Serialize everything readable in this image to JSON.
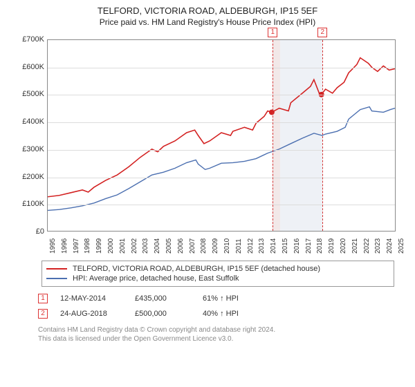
{
  "title_line1": "TELFORD, VICTORIA ROAD, ALDEBURGH, IP15 5EF",
  "title_line2": "Price paid vs. HM Land Registry's House Price Index (HPI)",
  "chart": {
    "type": "line",
    "background_color": "#ffffff",
    "grid_color": "#dcdcdc",
    "axis_color": "#888888",
    "x_years": [
      "1995",
      "1996",
      "1997",
      "1998",
      "1999",
      "2000",
      "2001",
      "2002",
      "2003",
      "2004",
      "2005",
      "2006",
      "2007",
      "2008",
      "2009",
      "2010",
      "2011",
      "2012",
      "2013",
      "2014",
      "2015",
      "2016",
      "2017",
      "2018",
      "2019",
      "2020",
      "2021",
      "2022",
      "2023",
      "2024",
      "2025"
    ],
    "xlim": [
      1995,
      2025
    ],
    "ylim": [
      0,
      700000
    ],
    "y_ticks": [
      0,
      100000,
      200000,
      300000,
      400000,
      500000,
      600000,
      700000
    ],
    "y_tick_labels": [
      "£0",
      "£100K",
      "£200K",
      "£300K",
      "£400K",
      "£500K",
      "£600K",
      "£700K"
    ],
    "bands": [
      {
        "from": 2014.36,
        "to": 2015.0,
        "color": "#f2e8e8"
      },
      {
        "from": 2015.0,
        "to": 2018.65,
        "color": "#eef1f6"
      }
    ],
    "vlines": [
      {
        "x": 2014.36,
        "label": "1",
        "color": "#d33333"
      },
      {
        "x": 2018.65,
        "label": "2",
        "color": "#d33333"
      }
    ],
    "series": [
      {
        "name": "TELFORD, VICTORIA ROAD, ALDEBURGH, IP15 5EF (detached house)",
        "color": "#d32121",
        "line_width": 1.6,
        "points": [
          [
            1995,
            125000
          ],
          [
            1996,
            130000
          ],
          [
            1997,
            140000
          ],
          [
            1998,
            150000
          ],
          [
            1998.5,
            142000
          ],
          [
            1999,
            160000
          ],
          [
            2000,
            185000
          ],
          [
            2001,
            205000
          ],
          [
            2002,
            235000
          ],
          [
            2003,
            270000
          ],
          [
            2004,
            300000
          ],
          [
            2004.5,
            290000
          ],
          [
            2005,
            310000
          ],
          [
            2006,
            330000
          ],
          [
            2007,
            360000
          ],
          [
            2007.7,
            370000
          ],
          [
            2008,
            350000
          ],
          [
            2008.5,
            320000
          ],
          [
            2009,
            330000
          ],
          [
            2010,
            360000
          ],
          [
            2010.8,
            350000
          ],
          [
            2011,
            365000
          ],
          [
            2012,
            380000
          ],
          [
            2012.7,
            370000
          ],
          [
            2013,
            395000
          ],
          [
            2013.7,
            420000
          ],
          [
            2014,
            440000
          ],
          [
            2014.36,
            435000
          ],
          [
            2015,
            450000
          ],
          [
            2015.8,
            440000
          ],
          [
            2016,
            470000
          ],
          [
            2017,
            505000
          ],
          [
            2017.7,
            530000
          ],
          [
            2018,
            555000
          ],
          [
            2018.5,
            500000
          ],
          [
            2018.65,
            500000
          ],
          [
            2019,
            520000
          ],
          [
            2019.6,
            505000
          ],
          [
            2020,
            525000
          ],
          [
            2020.6,
            545000
          ],
          [
            2021,
            580000
          ],
          [
            2021.7,
            610000
          ],
          [
            2022,
            635000
          ],
          [
            2022.7,
            615000
          ],
          [
            2023,
            600000
          ],
          [
            2023.5,
            585000
          ],
          [
            2024,
            605000
          ],
          [
            2024.5,
            590000
          ],
          [
            2025,
            595000
          ]
        ]
      },
      {
        "name": "HPI: Average price, detached house, East Suffolk",
        "color": "#4b6fb0",
        "line_width": 1.4,
        "points": [
          [
            1995,
            75000
          ],
          [
            1996,
            78000
          ],
          [
            1997,
            84000
          ],
          [
            1998,
            92000
          ],
          [
            1999,
            102000
          ],
          [
            2000,
            118000
          ],
          [
            2001,
            132000
          ],
          [
            2002,
            155000
          ],
          [
            2003,
            180000
          ],
          [
            2004,
            205000
          ],
          [
            2005,
            215000
          ],
          [
            2006,
            230000
          ],
          [
            2007,
            250000
          ],
          [
            2007.8,
            260000
          ],
          [
            2008,
            245000
          ],
          [
            2008.6,
            225000
          ],
          [
            2009,
            230000
          ],
          [
            2010,
            248000
          ],
          [
            2011,
            250000
          ],
          [
            2012,
            255000
          ],
          [
            2013,
            265000
          ],
          [
            2014,
            285000
          ],
          [
            2015,
            300000
          ],
          [
            2016,
            320000
          ],
          [
            2017,
            340000
          ],
          [
            2018,
            358000
          ],
          [
            2018.7,
            350000
          ],
          [
            2019,
            355000
          ],
          [
            2020,
            365000
          ],
          [
            2020.7,
            380000
          ],
          [
            2021,
            410000
          ],
          [
            2022,
            445000
          ],
          [
            2022.8,
            455000
          ],
          [
            2023,
            440000
          ],
          [
            2024,
            435000
          ],
          [
            2024.6,
            445000
          ],
          [
            2025,
            450000
          ]
        ]
      }
    ],
    "sale_markers": [
      {
        "x": 2014.36,
        "y": 435000,
        "color": "#d32121",
        "r": 4
      },
      {
        "x": 2018.65,
        "y": 500000,
        "color": "#d32121",
        "r": 4
      }
    ]
  },
  "legend": {
    "items": [
      {
        "color": "#d32121",
        "label": "TELFORD, VICTORIA ROAD, ALDEBURGH, IP15 5EF (detached house)"
      },
      {
        "color": "#4b6fb0",
        "label": "HPI: Average price, detached house, East Suffolk"
      }
    ]
  },
  "sales": [
    {
      "idx": "1",
      "date": "12-MAY-2014",
      "price": "£435,000",
      "pct": "61% ↑ HPI"
    },
    {
      "idx": "2",
      "date": "24-AUG-2018",
      "price": "£500,000",
      "pct": "40% ↑ HPI"
    }
  ],
  "footer_line1": "Contains HM Land Registry data © Crown copyright and database right 2024.",
  "footer_line2": "This data is licensed under the Open Government Licence v3.0."
}
